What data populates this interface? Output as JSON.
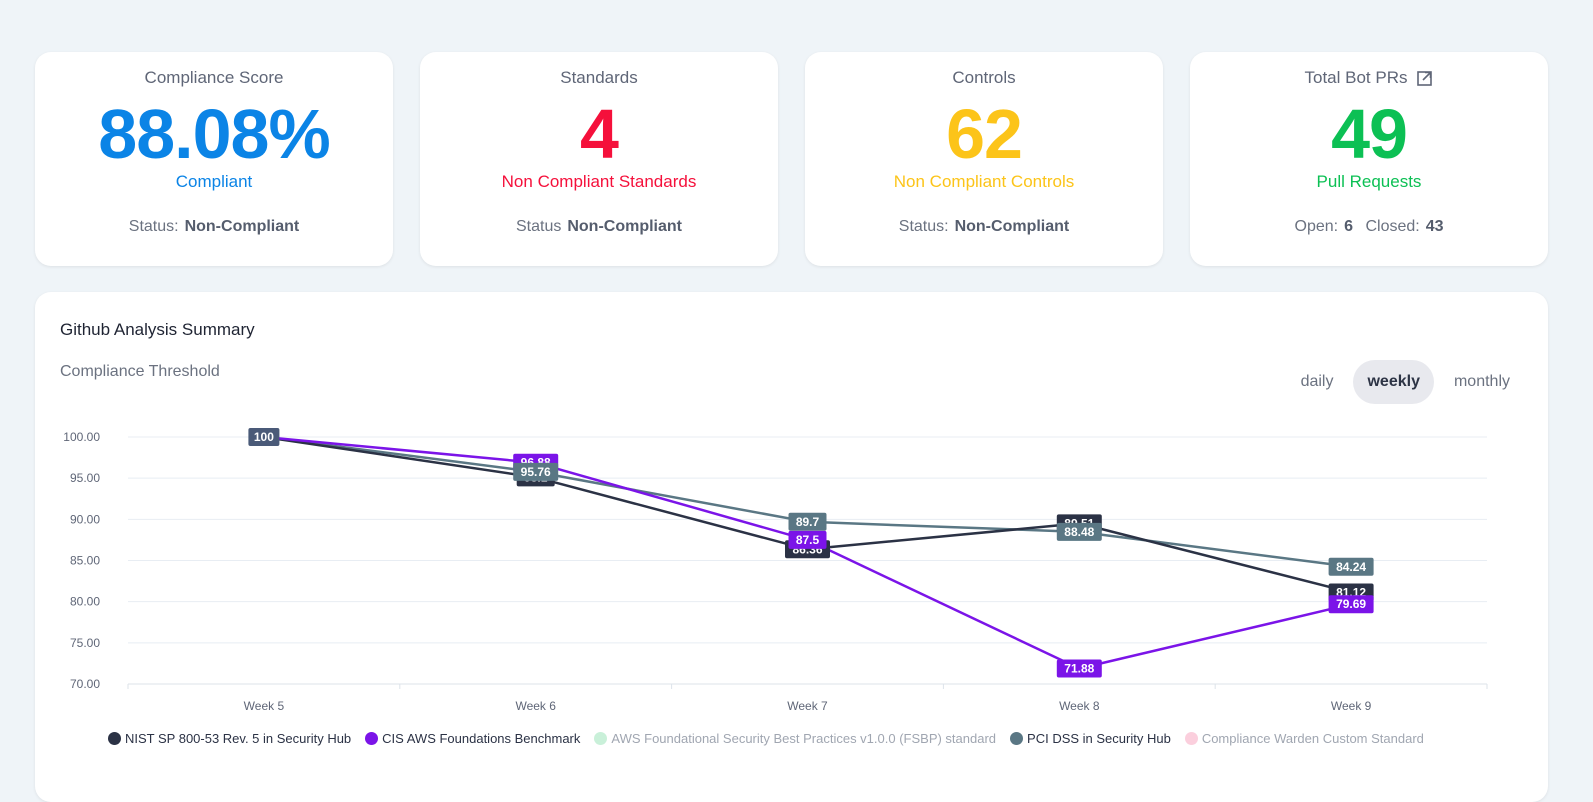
{
  "cards": [
    {
      "title": "Compliance Score",
      "value": "88.08%",
      "subtitle": "Compliant",
      "color": "#0b84e6",
      "status_label": "Status:",
      "status_value": "Non-Compliant"
    },
    {
      "title": "Standards",
      "value": "4",
      "subtitle": "Non Compliant Standards",
      "color": "#f5103b",
      "status_label": "Status",
      "status_value": "Non-Compliant"
    },
    {
      "title": "Controls",
      "value": "62",
      "subtitle": "Non Compliant Controls",
      "color": "#fcc419",
      "status_label": "Status:",
      "status_value": "Non-Compliant"
    },
    {
      "title": "Total Bot PRs",
      "title_icon": "external-link-icon",
      "value": "49",
      "subtitle": "Pull Requests",
      "color": "#0cc054",
      "open_label": "Open:",
      "open_value": "6",
      "closed_label": "Closed:",
      "closed_value": "43"
    }
  ],
  "panel": {
    "title": "Github Analysis Summary",
    "subtitle": "Compliance Threshold",
    "tabs": [
      {
        "label": "daily",
        "active": false
      },
      {
        "label": "weekly",
        "active": true
      },
      {
        "label": "monthly",
        "active": false
      }
    ]
  },
  "chart_data": {
    "type": "line",
    "title": "Compliance Threshold",
    "x": [
      "Week 5",
      "Week 6",
      "Week 7",
      "Week 8",
      "Week 9"
    ],
    "ylim": [
      70,
      100
    ],
    "yticks": [
      "100.00",
      "95.00",
      "90.00",
      "85.00",
      "80.00",
      "75.00",
      "70.00"
    ],
    "grid": true,
    "legend_position": "bottom",
    "series": [
      {
        "name": "NIST SP 800-53 Rev. 5 in Security Hub",
        "color": "#2b3245",
        "values": [
          100,
          95.1,
          86.36,
          89.51,
          81.12
        ],
        "visible": true
      },
      {
        "name": "CIS AWS Foundations Benchmark",
        "color": "#7b14e8",
        "values": [
          100,
          96.88,
          87.5,
          71.88,
          79.69
        ],
        "visible": true
      },
      {
        "name": "AWS Foundational Security Best Practices v1.0.0 (FSBP) standard",
        "color": "#c9f0d9",
        "values": [],
        "visible": false
      },
      {
        "name": "PCI DSS in Security Hub",
        "color": "#5a7784",
        "values": [
          100,
          95.76,
          89.7,
          88.48,
          84.24
        ],
        "visible": true
      },
      {
        "name": "Compliance Warden Custom Standard",
        "color": "#fbcfdd",
        "values": [],
        "visible": false
      }
    ],
    "point_labels": [
      {
        "series": 3,
        "index": 0,
        "text": "100",
        "color": "#4a5a78"
      },
      {
        "series": 0,
        "index": 1,
        "text": "95.1",
        "color": "#2b3245"
      },
      {
        "series": 1,
        "index": 1,
        "text": "96.88",
        "color": "#7b14e8"
      },
      {
        "series": 3,
        "index": 1,
        "text": "95.76",
        "color": "#5a7784"
      },
      {
        "series": 0,
        "index": 2,
        "text": "86.36",
        "color": "#2b3245"
      },
      {
        "series": 3,
        "index": 2,
        "text": "89.7",
        "color": "#5a7784"
      },
      {
        "series": 1,
        "index": 2,
        "text": "87.5",
        "color": "#7b14e8"
      },
      {
        "series": 0,
        "index": 3,
        "text": "89.51",
        "color": "#2b3245"
      },
      {
        "series": 3,
        "index": 3,
        "text": "88.48",
        "color": "#5a7784"
      },
      {
        "series": 1,
        "index": 3,
        "text": "71.88",
        "color": "#7b14e8"
      },
      {
        "series": 3,
        "index": 4,
        "text": "84.24",
        "color": "#5a7784"
      },
      {
        "series": 0,
        "index": 4,
        "text": "81.12",
        "color": "#2b3245"
      },
      {
        "series": 1,
        "index": 4,
        "text": "79.69",
        "color": "#7b14e8"
      }
    ]
  }
}
